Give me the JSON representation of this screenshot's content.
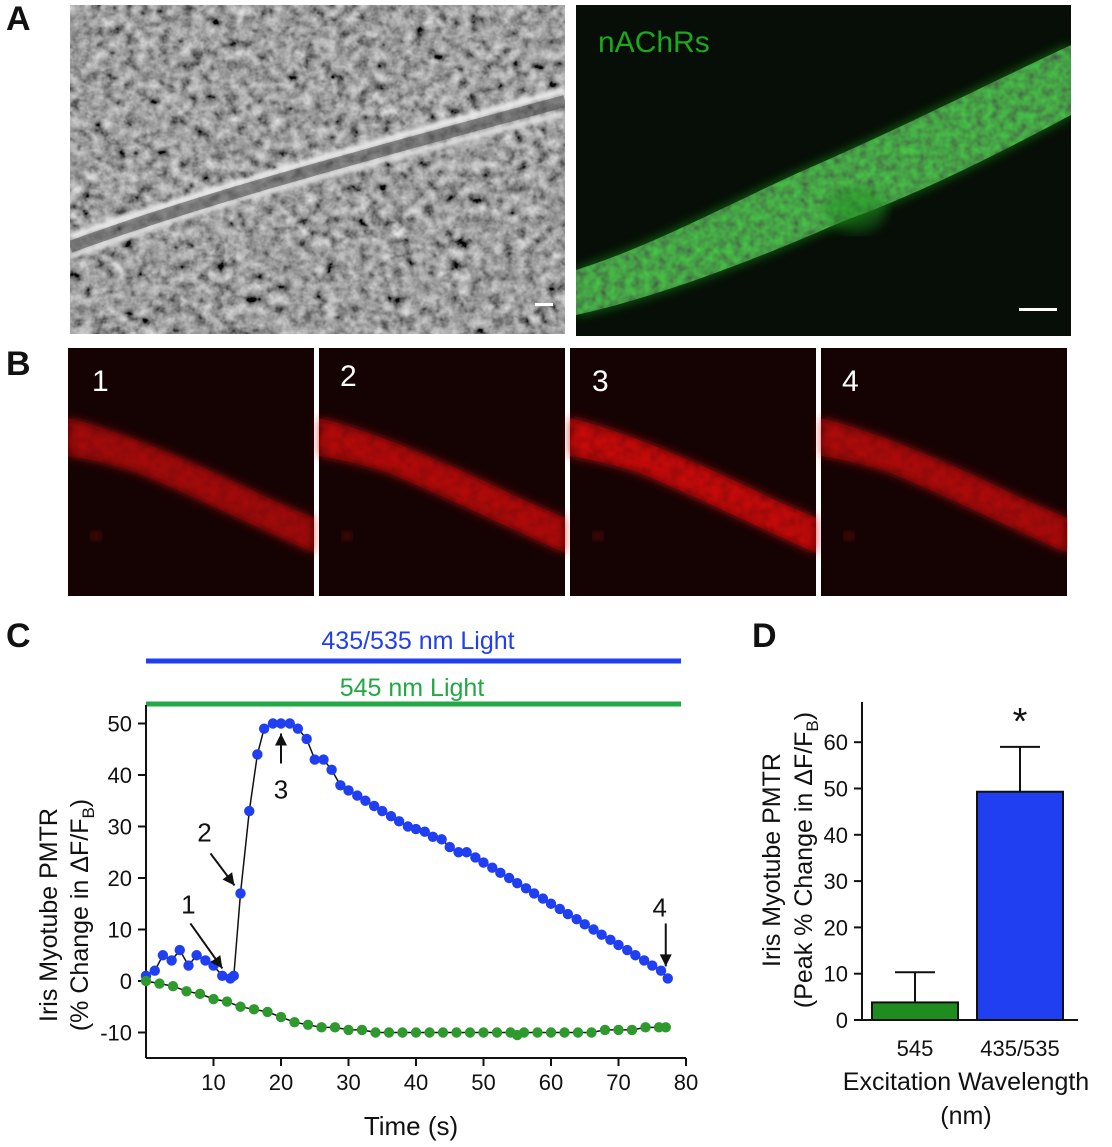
{
  "panels": {
    "a": {
      "letter": "A",
      "fluorescence_label": "nAChRs",
      "colors": {
        "phase_bg": "#3a3a3a",
        "fluor_bg": "#070d07",
        "fluor": "#1fc81f"
      }
    },
    "b": {
      "letter": "B",
      "frames": [
        "1",
        "2",
        "3",
        "4"
      ],
      "frame_intensity": [
        0.55,
        0.7,
        0.95,
        0.65
      ],
      "colors": {
        "bg": "#150303",
        "signal": "#d81818"
      }
    },
    "c": {
      "letter": "C",
      "bar_labels": {
        "blue": "435/535 nm Light",
        "green": "545 nm Light"
      },
      "annotations": [
        "1",
        "2",
        "3",
        "4"
      ],
      "ylabel_line1": "Iris Myotube PMTR",
      "ylabel_line2": "(% Change in ΔF/F",
      "ylabel_sub": "B",
      "ylabel_end": ")",
      "xlabel": "Time (s)"
    },
    "d": {
      "letter": "D",
      "ylabel_line1": "Iris Myotube PMTR",
      "ylabel_line2": "(Peak % Change in ΔF/F",
      "ylabel_sub": "B",
      "ylabel_end": ")",
      "xlabel_line1": "Excitation Wavelength",
      "xlabel_line2": "(nm)",
      "significance": "*"
    }
  },
  "chart_data": [
    {
      "type": "line",
      "xlabel": "Time (s)",
      "ylabel": "Iris Myotube PMTR (% Change in ΔF/FB)",
      "xlim": [
        0,
        80
      ],
      "ylim": [
        -13,
        53
      ],
      "xticks": [
        "10",
        "20",
        "30",
        "40",
        "50",
        "60",
        "70",
        "80"
      ],
      "yticks": [
        "-10",
        "0",
        "10",
        "20",
        "30",
        "40",
        "50"
      ],
      "series": [
        {
          "color": "#1f3ff0",
          "x": [
            0,
            1.3,
            2.5,
            3.8,
            5,
            6.3,
            7.5,
            8.8,
            10,
            11.3,
            12.5,
            13,
            14,
            15.3,
            16.5,
            17.5,
            18.8,
            20,
            21.3,
            22.5,
            23.8,
            25,
            26.3,
            27.5,
            28.8,
            30,
            31.3,
            32.5,
            33.8,
            35,
            36.3,
            37.5,
            38.8,
            40,
            41.3,
            42.5,
            43.8,
            45,
            46.3,
            47.5,
            48.8,
            50,
            51.3,
            52.5,
            53.8,
            55,
            56.3,
            57.5,
            58.8,
            60,
            61.3,
            62.5,
            63.8,
            65,
            66.3,
            67.5,
            68.8,
            70,
            71.3,
            72.5,
            73.8,
            75,
            76.3,
            77.3
          ],
          "y": [
            1,
            2,
            5,
            4,
            6,
            3,
            5,
            4,
            3,
            1,
            0.5,
            1,
            17,
            33,
            44,
            49,
            50,
            50,
            50,
            49,
            47,
            43,
            43,
            41,
            38,
            37,
            36,
            35,
            34,
            33,
            32,
            31,
            30,
            29.5,
            29,
            28,
            27.5,
            26,
            25,
            25,
            24,
            23,
            22,
            21,
            20,
            19,
            18,
            17,
            16,
            15,
            14,
            13,
            12,
            11,
            10,
            9,
            8,
            7,
            6,
            5,
            4,
            3,
            2,
            0.5
          ]
        },
        {
          "color": "#2e9a2e",
          "x": [
            0,
            2,
            4,
            6,
            8,
            10,
            12,
            14,
            16,
            18,
            20,
            22,
            24,
            26,
            28,
            30,
            32,
            34,
            36,
            38,
            40,
            42,
            44,
            46,
            48,
            50,
            52,
            54,
            55,
            56,
            58,
            60,
            62,
            64,
            66,
            68,
            70,
            72,
            74,
            76,
            77
          ],
          "y": [
            0,
            -0.5,
            -1,
            -2,
            -2.5,
            -3.5,
            -4,
            -5,
            -5.5,
            -6,
            -7,
            -8,
            -8.5,
            -9,
            -9,
            -9.5,
            -9.5,
            -10,
            -10,
            -10,
            -10,
            -10,
            -10,
            -10,
            -10,
            -10,
            -10,
            -10,
            -10.5,
            -10,
            -10,
            -10,
            -10,
            -10,
            -10,
            -9.5,
            -9.5,
            -9.5,
            -9,
            -9,
            -9
          ]
        }
      ],
      "annotated_points": [
        {
          "label": "1",
          "x": 12.5,
          "y": 0.5
        },
        {
          "label": "2",
          "x": 14,
          "y": 17
        },
        {
          "label": "3",
          "x": 20,
          "y": 50
        },
        {
          "label": "4",
          "x": 77,
          "y": 0.5
        }
      ],
      "bars_above": [
        {
          "label": "435/535 nm Light",
          "color": "#1f3ff0",
          "x_range": [
            0,
            80
          ]
        },
        {
          "label": "545 nm Light",
          "color": "#22a845",
          "x_range": [
            0,
            80
          ]
        }
      ]
    },
    {
      "type": "bar",
      "categories": [
        "545",
        "435/535"
      ],
      "values": [
        3.8,
        49.3
      ],
      "error_up": [
        10.3,
        59
      ],
      "colors": [
        "#1e8c1e",
        "#1f3ff0"
      ],
      "ylim": [
        0,
        65
      ],
      "yticks": [
        "0",
        "10",
        "20",
        "30",
        "40",
        "50",
        "60"
      ],
      "xlabel": "Excitation Wavelength (nm)",
      "ylabel": "Iris Myotube PMTR (Peak % Change in ΔF/FB)"
    }
  ]
}
